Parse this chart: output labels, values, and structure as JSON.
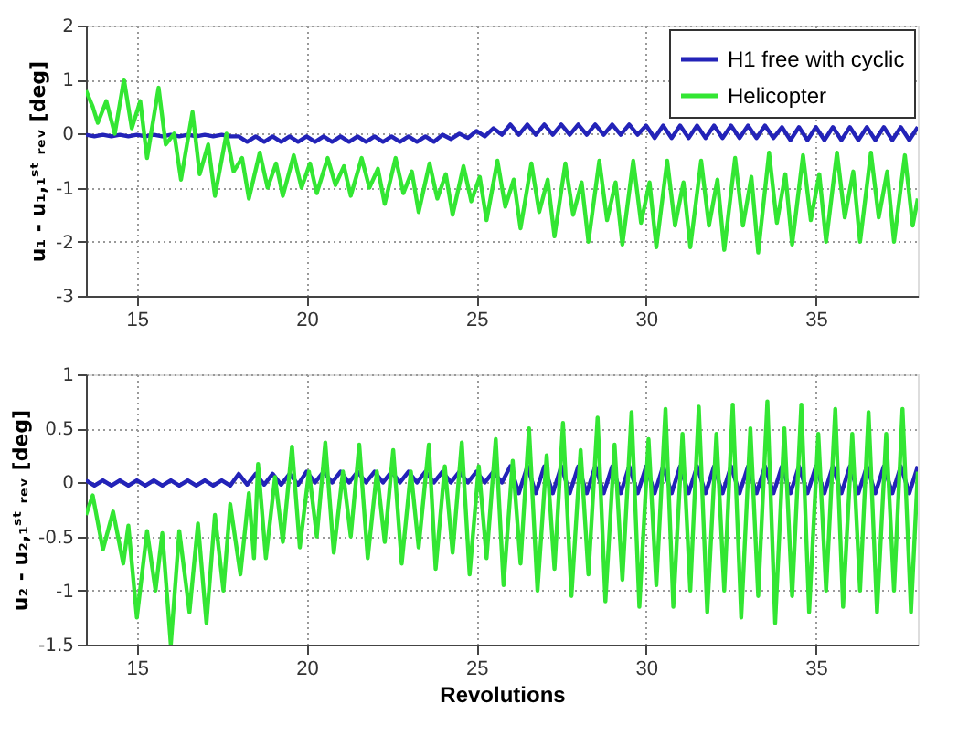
{
  "chart_data": [
    {
      "type": "line",
      "ylabel": "u₁ - u₁,₁ˢᵗ ᵣₑᵥ [deg]",
      "xlim": [
        13.5,
        38
      ],
      "xticks": [
        15,
        20,
        25,
        30,
        35
      ],
      "ylim": [
        -3,
        2
      ],
      "yticks": [
        -3,
        -2,
        -1,
        0,
        1,
        2
      ],
      "grid": true,
      "legend": "top right",
      "line_style": "solid",
      "marker": "none",
      "x": [
        13.5,
        13.75,
        14,
        14.25,
        14.5,
        14.75,
        15,
        15.25,
        15.5,
        15.75,
        16,
        16.25,
        16.5,
        16.75,
        17,
        17.25,
        17.5,
        17.75,
        18,
        18.25,
        18.5,
        18.75,
        19,
        19.25,
        19.5,
        19.75,
        20,
        20.25,
        20.5,
        20.75,
        21,
        21.25,
        21.5,
        21.75,
        22,
        22.25,
        22.5,
        22.75,
        23,
        23.25,
        23.5,
        23.75,
        24,
        24.25,
        24.5,
        24.75,
        25,
        25.25,
        25.5,
        25.75,
        26,
        26.25,
        26.5,
        26.75,
        27,
        27.25,
        27.5,
        27.75,
        28,
        28.25,
        28.5,
        28.75,
        29,
        29.25,
        29.5,
        29.75,
        30,
        30.25,
        30.5,
        30.75,
        31,
        31.25,
        31.5,
        31.75,
        32,
        32.25,
        32.5,
        32.75,
        33,
        33.25,
        33.5,
        33.75,
        34,
        34.25,
        34.5,
        34.75,
        35,
        35.25,
        35.5,
        35.75,
        36,
        36.25,
        36.5,
        36.75,
        37,
        37.25,
        37.5,
        37.75,
        38
      ],
      "series": [
        {
          "name": "H1 free with cyclic",
          "color": "#2323b8",
          "values": [
            -0.02,
            -0.05,
            -0.02,
            -0.05,
            -0.02,
            -0.05,
            -0.02,
            -0.05,
            -0.02,
            -0.05,
            -0.02,
            -0.05,
            -0.02,
            -0.05,
            -0.02,
            -0.05,
            -0.02,
            -0.05,
            -0.05,
            -0.15,
            -0.05,
            -0.15,
            -0.05,
            -0.15,
            -0.05,
            -0.15,
            -0.05,
            -0.15,
            -0.05,
            -0.15,
            -0.05,
            -0.15,
            -0.05,
            -0.15,
            -0.05,
            -0.15,
            -0.05,
            -0.15,
            -0.05,
            -0.15,
            -0.05,
            -0.15,
            -0.02,
            -0.1,
            0.0,
            -0.08,
            0.05,
            -0.05,
            0.1,
            -0.02,
            0.17,
            -0.02,
            0.17,
            -0.02,
            0.17,
            -0.02,
            0.17,
            -0.02,
            0.17,
            -0.02,
            0.17,
            -0.02,
            0.17,
            -0.02,
            0.17,
            -0.02,
            0.15,
            -0.08,
            0.15,
            -0.08,
            0.15,
            -0.08,
            0.15,
            -0.08,
            0.15,
            -0.08,
            0.15,
            -0.08,
            0.15,
            -0.08,
            0.15,
            -0.08,
            0.12,
            -0.12,
            0.12,
            -0.12,
            0.12,
            -0.12,
            0.12,
            -0.12,
            0.12,
            -0.12,
            0.12,
            -0.12,
            0.12,
            -0.12,
            0.12,
            -0.12,
            0.12
          ]
        },
        {
          "name": "Helicopter",
          "color": "#33e633",
          "x": [
            13.5,
            13.7,
            13.85,
            14.1,
            14.35,
            14.62,
            14.85,
            15.1,
            15.3,
            15.64,
            15.85,
            16.1,
            16.3,
            16.64,
            16.85,
            17.1,
            17.3,
            17.64,
            17.85,
            18.1,
            18.3,
            18.62,
            18.85,
            19.1,
            19.3,
            19.62,
            19.85,
            20.1,
            20.3,
            20.62,
            20.85,
            21.1,
            21.3,
            21.62,
            21.85,
            22.1,
            22.3,
            22.62,
            22.85,
            23.1,
            23.3,
            23.62,
            23.85,
            24.1,
            24.3,
            24.62,
            24.85,
            25.1,
            25.3,
            25.62,
            25.85,
            26.1,
            26.3,
            26.62,
            26.85,
            27.1,
            27.3,
            27.62,
            27.85,
            28.1,
            28.3,
            28.62,
            28.85,
            29.1,
            29.3,
            29.62,
            29.85,
            30.1,
            30.3,
            30.62,
            30.85,
            31.1,
            31.3,
            31.62,
            31.85,
            32.1,
            32.3,
            32.62,
            32.85,
            33.1,
            33.3,
            33.62,
            33.85,
            34.1,
            34.3,
            34.62,
            34.85,
            35.1,
            35.3,
            35.62,
            35.85,
            36.1,
            36.3,
            36.62,
            36.85,
            37.1,
            37.3,
            37.62,
            37.85,
            38
          ],
          "values": [
            0.8,
            0.5,
            0.2,
            0.6,
            0.0,
            1.0,
            0.1,
            0.6,
            -0.45,
            0.85,
            -0.2,
            0.0,
            -0.85,
            0.4,
            -0.75,
            -0.2,
            -1.15,
            0.0,
            -0.7,
            -0.45,
            -1.2,
            -0.35,
            -1.0,
            -0.55,
            -1.15,
            -0.4,
            -1.0,
            -0.55,
            -1.1,
            -0.45,
            -0.95,
            -0.6,
            -1.15,
            -0.45,
            -1.0,
            -0.65,
            -1.3,
            -0.45,
            -1.1,
            -0.7,
            -1.45,
            -0.55,
            -1.2,
            -0.75,
            -1.5,
            -0.6,
            -1.25,
            -0.8,
            -1.6,
            -0.5,
            -1.35,
            -0.85,
            -1.75,
            -0.55,
            -1.45,
            -0.85,
            -1.9,
            -0.55,
            -1.5,
            -0.9,
            -2.0,
            -0.5,
            -1.6,
            -0.9,
            -2.05,
            -0.5,
            -1.65,
            -0.9,
            -2.1,
            -0.5,
            -1.7,
            -0.9,
            -2.1,
            -0.5,
            -1.7,
            -0.85,
            -2.15,
            -0.45,
            -1.7,
            -0.8,
            -2.2,
            -0.35,
            -1.65,
            -0.75,
            -2.05,
            -0.4,
            -1.6,
            -0.75,
            -2.0,
            -0.35,
            -1.55,
            -0.7,
            -2.0,
            -0.35,
            -1.55,
            -0.7,
            -2.0,
            -0.4,
            -1.7,
            -1.2
          ]
        }
      ]
    },
    {
      "type": "line",
      "xlabel": "Revolutions",
      "ylabel": "u₂ - u₂,₁ˢᵗ ᵣₑᵥ [deg]",
      "xlim": [
        13.5,
        38
      ],
      "xticks": [
        15,
        20,
        25,
        30,
        35
      ],
      "ylim": [
        -1.5,
        1
      ],
      "yticks": [
        -1.5,
        -1,
        -0.5,
        0,
        0.5,
        1
      ],
      "grid": true,
      "line_style": "solid",
      "marker": "none",
      "x": [
        13.5,
        13.75,
        14,
        14.25,
        14.5,
        14.75,
        15,
        15.25,
        15.5,
        15.75,
        16,
        16.25,
        16.5,
        16.75,
        17,
        17.25,
        17.5,
        17.75,
        18,
        18.25,
        18.5,
        18.75,
        19,
        19.25,
        19.5,
        19.75,
        20,
        20.25,
        20.5,
        20.75,
        21,
        21.25,
        21.5,
        21.75,
        22,
        22.25,
        22.5,
        22.75,
        23,
        23.25,
        23.5,
        23.75,
        24,
        24.25,
        24.5,
        24.75,
        25,
        25.25,
        25.5,
        25.75,
        26,
        26.25,
        26.5,
        26.75,
        27,
        27.25,
        27.5,
        27.75,
        28,
        28.25,
        28.5,
        28.75,
        29,
        29.25,
        29.5,
        29.75,
        30,
        30.25,
        30.5,
        30.75,
        31,
        31.25,
        31.5,
        31.75,
        32,
        32.25,
        32.5,
        32.75,
        33,
        33.25,
        33.5,
        33.75,
        34,
        34.25,
        34.5,
        34.75,
        35,
        35.25,
        35.5,
        35.75,
        36,
        36.25,
        36.5,
        36.75,
        37,
        37.25,
        37.5,
        37.75,
        38
      ],
      "series": [
        {
          "color": "#2323b8",
          "values": [
            0.02,
            -0.03,
            0.02,
            -0.03,
            0.02,
            -0.03,
            0.02,
            -0.03,
            0.02,
            -0.03,
            0.02,
            -0.03,
            0.02,
            -0.03,
            0.02,
            -0.03,
            0.02,
            -0.03,
            0.08,
            -0.02,
            0.08,
            -0.02,
            0.08,
            -0.02,
            0.08,
            -0.02,
            0.1,
            0.0,
            0.1,
            0.0,
            0.1,
            0.0,
            0.1,
            0.0,
            0.1,
            0.0,
            0.1,
            0.0,
            0.1,
            0.0,
            0.1,
            0.0,
            0.1,
            0.0,
            0.1,
            0.0,
            0.1,
            0.0,
            0.1,
            0.0,
            0.15,
            -0.1,
            0.15,
            -0.1,
            0.15,
            -0.1,
            0.15,
            -0.1,
            0.15,
            -0.1,
            0.15,
            -0.1,
            0.15,
            -0.1,
            0.15,
            -0.1,
            0.15,
            -0.1,
            0.15,
            -0.1,
            0.15,
            -0.1,
            0.15,
            -0.1,
            0.15,
            -0.1,
            0.15,
            -0.1,
            0.15,
            -0.1,
            0.15,
            -0.1,
            0.15,
            -0.1,
            0.15,
            -0.1,
            0.15,
            -0.1,
            0.15,
            -0.1,
            0.15,
            -0.1,
            0.15,
            -0.1,
            0.15,
            -0.1,
            0.15,
            -0.1,
            0.15
          ]
        },
        {
          "color": "#33e633",
          "x": [
            13.5,
            13.7,
            14.0,
            14.3,
            14.6,
            14.75,
            15.0,
            15.3,
            15.55,
            15.75,
            16.0,
            16.25,
            16.55,
            16.8,
            17.05,
            17.3,
            17.55,
            17.75,
            18.05,
            18.3,
            18.45,
            18.57,
            18.8,
            19.07,
            19.3,
            19.57,
            19.8,
            20.07,
            20.3,
            20.55,
            20.8,
            21.07,
            21.3,
            21.55,
            21.8,
            22.07,
            22.3,
            22.55,
            22.8,
            23.07,
            23.3,
            23.6,
            23.8,
            24.07,
            24.3,
            24.57,
            24.8,
            25.07,
            25.3,
            25.57,
            25.8,
            26.07,
            26.3,
            26.55,
            26.8,
            27.07,
            27.3,
            27.55,
            27.8,
            28.07,
            28.3,
            28.57,
            28.8,
            29.07,
            29.3,
            29.57,
            29.8,
            30.07,
            30.3,
            30.57,
            30.8,
            31.07,
            31.3,
            31.55,
            31.8,
            32.07,
            32.3,
            32.55,
            32.8,
            33.07,
            33.3,
            33.57,
            33.8,
            34.07,
            34.3,
            34.57,
            34.8,
            35.07,
            35.3,
            35.57,
            35.8,
            36.07,
            36.3,
            36.55,
            36.8,
            37.07,
            37.3,
            37.55,
            37.8,
            38
          ],
          "values": [
            -0.3,
            -0.12,
            -0.62,
            -0.27,
            -0.75,
            -0.4,
            -1.25,
            -0.45,
            -1.0,
            -0.47,
            -1.5,
            -0.45,
            -1.2,
            -0.38,
            -1.3,
            -0.3,
            -1.0,
            -0.2,
            -0.85,
            -0.1,
            -0.7,
            0.17,
            -0.7,
            0.05,
            -0.55,
            0.33,
            -0.6,
            0.1,
            -0.5,
            0.37,
            -0.65,
            0.1,
            -0.5,
            0.35,
            -0.7,
            0.1,
            -0.55,
            0.3,
            -0.75,
            0.1,
            -0.6,
            0.35,
            -0.8,
            0.15,
            -0.65,
            0.37,
            -0.85,
            0.15,
            -0.7,
            0.4,
            -0.95,
            0.2,
            -0.75,
            0.5,
            -1.0,
            0.25,
            -0.8,
            0.55,
            -1.05,
            0.3,
            -0.85,
            0.6,
            -1.1,
            0.35,
            -0.9,
            0.65,
            -1.15,
            0.4,
            -0.95,
            0.68,
            -1.15,
            0.45,
            -1.0,
            0.7,
            -1.2,
            0.45,
            -1.0,
            0.72,
            -1.25,
            0.5,
            -1.05,
            0.75,
            -1.3,
            0.5,
            -1.05,
            0.72,
            -1.2,
            0.45,
            -1.0,
            0.68,
            -1.15,
            0.45,
            -1.0,
            0.65,
            -1.2,
            0.45,
            -1.0,
            0.68,
            -1.2,
            0.1
          ]
        }
      ]
    }
  ]
}
